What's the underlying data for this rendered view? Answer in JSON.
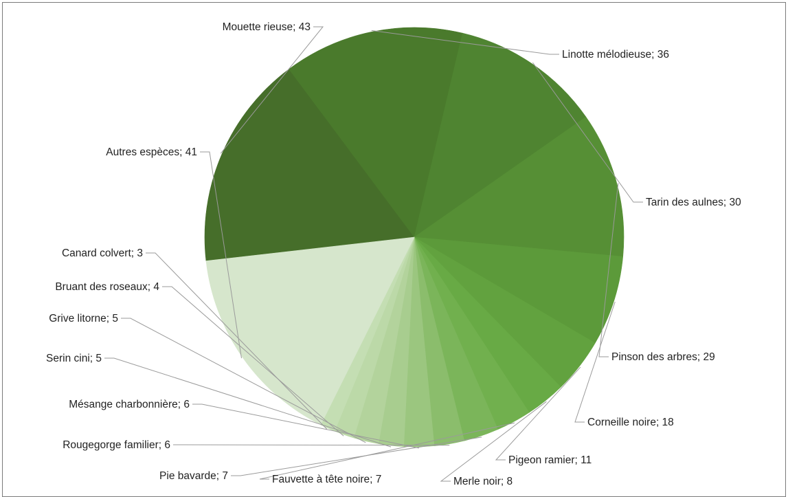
{
  "chart_data": {
    "type": "pie",
    "title": "",
    "slices": [
      {
        "label": "Mouette rieuse",
        "value": 43,
        "color": "#466e2a"
      },
      {
        "label": "Linotte mélodieuse",
        "value": 36,
        "color": "#4a7a2c"
      },
      {
        "label": "Tarin des aulnes",
        "value": 30,
        "color": "#4f8431"
      },
      {
        "label": "Pinson des arbres",
        "value": 29,
        "color": "#568f35"
      },
      {
        "label": "Corneille noire",
        "value": 18,
        "color": "#5c9a3a"
      },
      {
        "label": "Pigeon ramier",
        "value": 11,
        "color": "#62a23f"
      },
      {
        "label": "Merle noir",
        "value": 8,
        "color": "#68aa45"
      },
      {
        "label": "Fauvette à tête noire",
        "value": 7,
        "color": "#71b04e"
      },
      {
        "label": "Pie bavarde",
        "value": 7,
        "color": "#7bb55a"
      },
      {
        "label": "Rougegorge familier",
        "value": 6,
        "color": "#8bbd6c"
      },
      {
        "label": "Mésange charbonnière",
        "value": 6,
        "color": "#9bc67f"
      },
      {
        "label": "Serin cini",
        "value": 5,
        "color": "#a8cd8f"
      },
      {
        "label": "Grive litorne",
        "value": 5,
        "color": "#b3d39c"
      },
      {
        "label": "Bruant des roseaux",
        "value": 4,
        "color": "#bcd9a8"
      },
      {
        "label": "Canard colvert",
        "value": 3,
        "color": "#c4deb3"
      },
      {
        "label": "Autres espèces",
        "value": 41,
        "color": "#d6e6cc"
      }
    ],
    "label_format": "{label}; {value}",
    "legend": "none"
  }
}
